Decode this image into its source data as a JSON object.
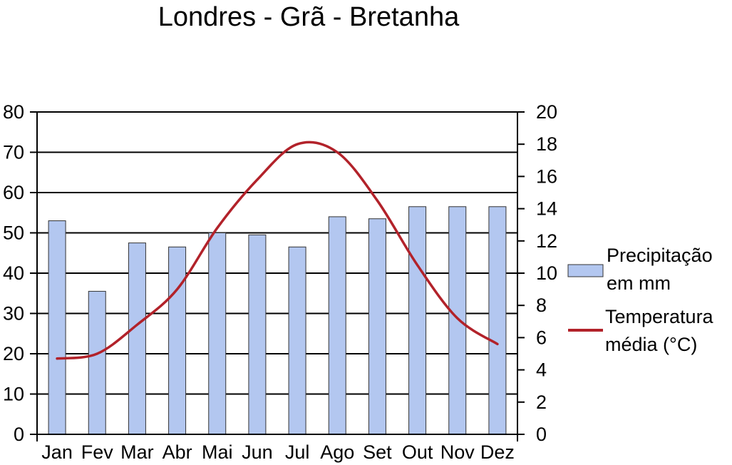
{
  "chart_data": {
    "type": "bar",
    "title": "Londres - Grã - Bretanha",
    "categories": [
      "Jan",
      "Fev",
      "Mar",
      "Abr",
      "Mai",
      "Jun",
      "Jul",
      "Ago",
      "Set",
      "Out",
      "Nov",
      "Dez"
    ],
    "series": [
      {
        "name": "Precipitação em mm",
        "name_lines": [
          "Precipitação",
          "em mm"
        ],
        "type": "bar",
        "axis": "left",
        "color": "#b3c7f0",
        "values": [
          53,
          35.5,
          47.5,
          46.5,
          50,
          49.5,
          46.5,
          54,
          53.5,
          56.5,
          56.5,
          56.5
        ]
      },
      {
        "name": "Temperatura média (°C)",
        "name_lines": [
          "Temperatura",
          "média (°C)"
        ],
        "type": "line",
        "axis": "right",
        "color": "#b2222a",
        "values": [
          4.7,
          5,
          6.8,
          9,
          12.8,
          15.8,
          18,
          17.5,
          14.5,
          10.5,
          7.2,
          5.6
        ]
      }
    ],
    "ylim_left": [
      0,
      80
    ],
    "yticks_left": [
      "0",
      "10",
      "20",
      "30",
      "40",
      "50",
      "60",
      "70",
      "80"
    ],
    "ylim_right": [
      0,
      20
    ],
    "yticks_right": [
      "0",
      "2",
      "4",
      "6",
      "8",
      "10",
      "12",
      "14",
      "16",
      "18",
      "20"
    ],
    "grid": "horizontal",
    "legend_position": "right"
  }
}
